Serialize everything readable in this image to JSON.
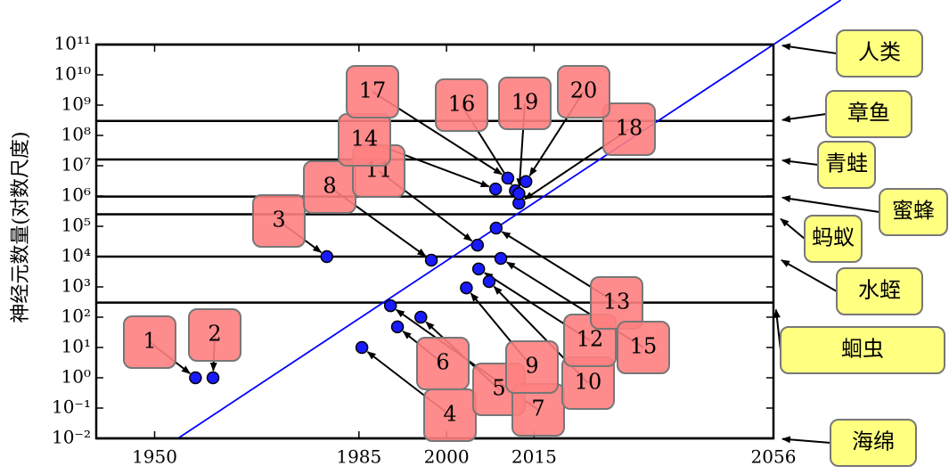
{
  "chart_data": {
    "type": "scatter",
    "y_label": "神经元数量(对数尺度)",
    "log_y": true,
    "color": "#1a1aff",
    "x": [
      1957,
      1960,
      1979.5,
      1985.5,
      1995.6,
      1991.6,
      1990.4,
      1997.4,
      2003.4,
      2007.3,
      2005.3,
      2005.5,
      2008.5,
      2008.4,
      2009.3,
      2011.8,
      2010.5,
      2012.4,
      2012.4,
      2013.6
    ],
    "values": [
      1,
      1,
      10000,
      10,
      100,
      48,
      240,
      7600,
      930,
      1500,
      24000,
      3900,
      87000,
      1700000,
      8700,
      1500000,
      3900000,
      580000,
      1200000,
      3000000
    ],
    "point_labels": [
      "1",
      "2",
      "3",
      "4",
      "5",
      "6",
      "7",
      "8",
      "9",
      "10",
      "11",
      "12",
      "13",
      "14",
      "15",
      "16",
      "17",
      "18",
      "19",
      "20"
    ],
    "xlim": [
      1940,
      2056
    ],
    "xticks": [
      1950,
      1985,
      2000,
      2015,
      2056
    ],
    "ylim": [
      0.01,
      100000000000
    ],
    "yticks": [
      {
        "value": 0.01,
        "label": "10⁻²"
      },
      {
        "value": 0.1,
        "label": "10⁻¹"
      },
      {
        "value": 1,
        "label": "10⁰"
      },
      {
        "value": 10,
        "label": "10¹"
      },
      {
        "value": 100,
        "label": "10²"
      },
      {
        "value": 1000,
        "label": "10³"
      },
      {
        "value": 10000,
        "label": "10⁴"
      },
      {
        "value": 100000,
        "label": "10⁵"
      },
      {
        "value": 1000000,
        "label": "10⁶"
      },
      {
        "value": 10000000,
        "label": "10⁷"
      },
      {
        "value": 100000000,
        "label": "10⁸"
      },
      {
        "value": 1000000000,
        "label": "10⁹"
      },
      {
        "value": 10000000000,
        "label": "10¹⁰"
      },
      {
        "value": 100000000000,
        "label": "10¹¹"
      }
    ],
    "trend_line": {
      "color": "#0000ff",
      "x": [
        1954,
        2056
      ],
      "values": [
        0.01,
        100000000000
      ]
    },
    "reference_lines": [
      {
        "name": "人类",
        "value": 100000000000
      },
      {
        "name": "章鱼",
        "value": 300000000
      },
      {
        "name": "青蛙",
        "value": 16000000
      },
      {
        "name": "蜜蜂",
        "value": 960000
      },
      {
        "name": "蚂蚁",
        "value": 250000
      },
      {
        "name": "水蛭",
        "value": 10000
      },
      {
        "name": "蛔虫",
        "value": 302
      },
      {
        "name": "海绵",
        "value": 0.01
      }
    ]
  }
}
